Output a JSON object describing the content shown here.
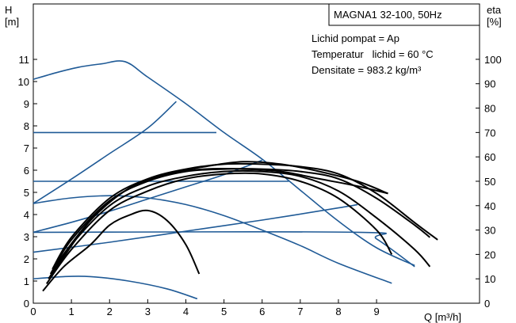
{
  "chart_data": {
    "type": "line",
    "title": "MAGNA1 32-100, 50Hz",
    "notes": [
      "Lichid pompat = Ap",
      "Temperatur   lichid = 60 °C",
      "Densitate = 983.2 kg/m³"
    ],
    "xlabel": "Q [m³/h]",
    "ylabel_left": [
      "H",
      "[m]"
    ],
    "ylabel_right": [
      "eta",
      "[%]"
    ],
    "xlim": [
      0,
      11.7
    ],
    "ylim_left": [
      0,
      13.5
    ],
    "ylim_right": [
      0,
      122.7
    ],
    "x_ticks": [
      "0",
      "1",
      "2",
      "3",
      "4",
      "5",
      "6",
      "7",
      "8",
      "9"
    ],
    "y_left_ticks": [
      "0",
      "1",
      "2",
      "3",
      "4",
      "5",
      "6",
      "7",
      "8",
      "9",
      "10",
      "11"
    ],
    "y_right_ticks": [
      "0",
      "10",
      "20",
      "30",
      "40",
      "50",
      "60",
      "70",
      "80",
      "90",
      "100"
    ],
    "colors": {
      "head": "#1f5a96",
      "efficiency": "#000000",
      "frame": "#000000"
    },
    "series_head": [
      {
        "points": [
          [
            0,
            10.1
          ],
          [
            0.6,
            10.4
          ],
          [
            1.2,
            10.65
          ],
          [
            1.8,
            10.8
          ],
          [
            2.4,
            10.9
          ],
          [
            3.0,
            10.2
          ],
          [
            4.0,
            9.0
          ],
          [
            5.0,
            7.7
          ],
          [
            6.0,
            6.5
          ],
          [
            7.0,
            5.1
          ],
          [
            8.0,
            3.7
          ],
          [
            9.0,
            2.5
          ],
          [
            10.0,
            1.7
          ]
        ]
      },
      {
        "points": [
          [
            0,
            7.7
          ],
          [
            4.8,
            7.7
          ]
        ]
      },
      {
        "points": [
          [
            0,
            5.5
          ],
          [
            6.7,
            5.5
          ]
        ]
      },
      {
        "points": [
          [
            0,
            3.2
          ],
          [
            8.5,
            3.2
          ],
          [
            9.0,
            2.9
          ],
          [
            10.0,
            1.65
          ]
        ]
      },
      {
        "points": [
          [
            0,
            4.5
          ],
          [
            1.0,
            5.6
          ],
          [
            2.0,
            6.75
          ],
          [
            3.0,
            7.9
          ],
          [
            3.75,
            9.1
          ]
        ]
      },
      {
        "points": [
          [
            0,
            3.2
          ],
          [
            1.0,
            3.65
          ],
          [
            2.0,
            4.15
          ],
          [
            3.0,
            4.7
          ],
          [
            4.0,
            5.25
          ],
          [
            5.0,
            5.8
          ],
          [
            6.0,
            6.45
          ]
        ]
      },
      {
        "points": [
          [
            0,
            2.3
          ],
          [
            2.0,
            2.75
          ],
          [
            4.0,
            3.25
          ],
          [
            6.0,
            3.75
          ],
          [
            8.0,
            4.3
          ],
          [
            8.5,
            4.45
          ]
        ]
      },
      {
        "points": [
          [
            0,
            4.5
          ],
          [
            1.0,
            4.75
          ],
          [
            2.0,
            4.85
          ],
          [
            3.0,
            4.75
          ],
          [
            4.0,
            4.45
          ],
          [
            5.0,
            3.95
          ],
          [
            6.0,
            3.3
          ],
          [
            7.0,
            2.6
          ],
          [
            8.0,
            1.8
          ],
          [
            9.4,
            0.9
          ]
        ]
      },
      {
        "points": [
          [
            0,
            1.1
          ],
          [
            0.8,
            1.2
          ],
          [
            1.5,
            1.2
          ],
          [
            2.5,
            1.0
          ],
          [
            3.5,
            0.65
          ],
          [
            4.3,
            0.2
          ]
        ]
      }
    ],
    "series_efficiency": [
      {
        "points": [
          [
            0.25,
            5
          ],
          [
            0.8,
            15
          ],
          [
            1.5,
            24
          ],
          [
            2.0,
            32
          ],
          [
            2.5,
            36
          ],
          [
            3.0,
            38
          ],
          [
            3.5,
            34
          ],
          [
            4.0,
            24
          ],
          [
            4.35,
            12
          ]
        ]
      },
      {
        "points": [
          [
            0.35,
            8
          ],
          [
            1.0,
            22
          ],
          [
            2.0,
            38
          ],
          [
            3.0,
            46
          ],
          [
            4.0,
            51
          ],
          [
            5.0,
            53
          ],
          [
            6.0,
            53
          ],
          [
            7.0,
            50
          ],
          [
            8.0,
            43
          ],
          [
            9.0,
            30
          ],
          [
            9.4,
            20
          ]
        ]
      },
      {
        "points": [
          [
            0.4,
            10
          ],
          [
            1.0,
            24
          ],
          [
            2.0,
            40
          ],
          [
            3.0,
            48
          ],
          [
            4.0,
            52
          ],
          [
            5.0,
            54
          ],
          [
            6.0,
            54
          ],
          [
            7.0,
            52
          ],
          [
            8.0,
            46
          ],
          [
            9.0,
            35
          ],
          [
            10.0,
            22
          ],
          [
            10.4,
            15
          ]
        ]
      },
      {
        "points": [
          [
            0.45,
            12
          ],
          [
            1.0,
            26
          ],
          [
            2.0,
            42
          ],
          [
            3.0,
            50
          ],
          [
            4.0,
            54
          ],
          [
            5.0,
            55
          ],
          [
            6.0,
            55
          ],
          [
            7.0,
            54
          ],
          [
            8.0,
            51
          ],
          [
            9.0,
            43
          ],
          [
            10.0,
            32
          ],
          [
            10.4,
            27
          ]
        ]
      },
      {
        "points": [
          [
            0.5,
            14
          ],
          [
            1.0,
            27
          ],
          [
            2.0,
            43
          ],
          [
            3.0,
            51
          ],
          [
            4.0,
            55
          ],
          [
            5.0,
            57
          ],
          [
            6.0,
            57
          ],
          [
            7.0,
            56
          ],
          [
            8.0,
            53
          ],
          [
            9.0,
            45
          ],
          [
            10.0,
            33
          ],
          [
            10.6,
            26
          ]
        ]
      },
      {
        "points": [
          [
            0.6,
            16
          ],
          [
            1.5,
            34
          ],
          [
            2.5,
            47
          ],
          [
            3.5,
            53
          ],
          [
            4.5,
            56
          ],
          [
            5.5,
            58
          ],
          [
            6.5,
            57
          ],
          [
            7.5,
            54
          ],
          [
            8.5,
            50
          ],
          [
            9.3,
            45
          ]
        ]
      },
      {
        "points": [
          [
            0.5,
            12
          ],
          [
            1.5,
            34
          ],
          [
            2.5,
            47
          ],
          [
            3.5,
            53
          ],
          [
            4.5,
            55
          ],
          [
            5.5,
            55
          ],
          [
            6.5,
            54
          ],
          [
            7.5,
            51
          ],
          [
            8.5,
            48
          ],
          [
            9.3,
            45
          ]
        ]
      }
    ]
  }
}
